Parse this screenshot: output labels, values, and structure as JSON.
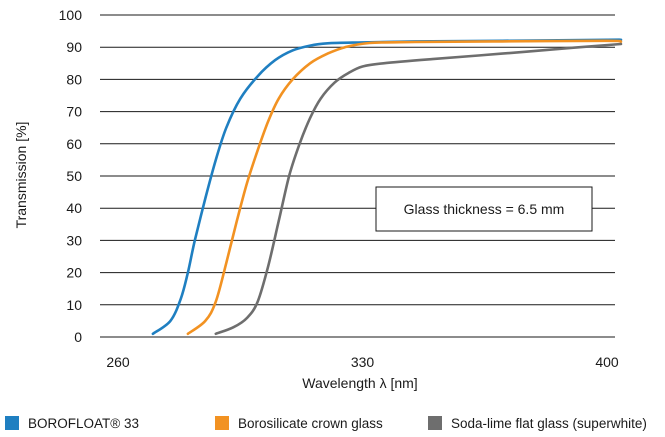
{
  "chart_data": {
    "type": "line",
    "xlabel": "Wavelength λ [nm]",
    "ylabel": "Transmission [%]",
    "xlim": [
      260,
      400
    ],
    "ylim": [
      0,
      100
    ],
    "x_ticks": [
      260,
      330,
      400
    ],
    "y_ticks": [
      0,
      10,
      20,
      30,
      40,
      50,
      60,
      70,
      80,
      90,
      100
    ],
    "grid": "horizontal",
    "legend_position": "bottom",
    "annotation": "Glass thickness = 6.5 mm",
    "series": [
      {
        "name": "BOROFLOAT® 33",
        "color": "#1f7fc1",
        "points": [
          [
            270,
            1
          ],
          [
            275,
            5
          ],
          [
            278,
            12
          ],
          [
            280,
            20
          ],
          [
            282,
            30
          ],
          [
            285,
            43
          ],
          [
            288,
            55
          ],
          [
            291,
            65
          ],
          [
            295,
            74
          ],
          [
            300,
            81
          ],
          [
            305,
            86
          ],
          [
            310,
            89
          ],
          [
            315,
            90.5
          ],
          [
            320,
            91.2
          ],
          [
            330,
            91.5
          ],
          [
            345,
            91.8
          ],
          [
            370,
            92
          ],
          [
            400,
            92.3
          ],
          [
            404,
            92.3
          ]
        ]
      },
      {
        "name": "Borosilicate crown glass",
        "color": "#f29222",
        "points": [
          [
            280,
            1
          ],
          [
            285,
            5
          ],
          [
            288,
            11
          ],
          [
            291,
            23
          ],
          [
            294,
            36
          ],
          [
            297,
            48
          ],
          [
            300,
            58
          ],
          [
            303,
            67
          ],
          [
            306,
            74
          ],
          [
            310,
            80
          ],
          [
            315,
            85
          ],
          [
            320,
            88
          ],
          [
            325,
            90
          ],
          [
            332,
            91.3
          ],
          [
            345,
            91.6
          ],
          [
            370,
            91.8
          ],
          [
            400,
            92
          ],
          [
            404,
            91.7
          ]
        ]
      },
      {
        "name": "Soda-lime flat glass (superwhite)",
        "color": "#6e6e6e",
        "points": [
          [
            288,
            1
          ],
          [
            293,
            3
          ],
          [
            297,
            6
          ],
          [
            300,
            11
          ],
          [
            303,
            22
          ],
          [
            306,
            36
          ],
          [
            309,
            50
          ],
          [
            312,
            60
          ],
          [
            315,
            68
          ],
          [
            318,
            74
          ],
          [
            322,
            79
          ],
          [
            326,
            82
          ],
          [
            330,
            84
          ],
          [
            336,
            85
          ],
          [
            350,
            86.3
          ],
          [
            370,
            88
          ],
          [
            390,
            89.8
          ],
          [
            404,
            91
          ]
        ]
      }
    ]
  }
}
